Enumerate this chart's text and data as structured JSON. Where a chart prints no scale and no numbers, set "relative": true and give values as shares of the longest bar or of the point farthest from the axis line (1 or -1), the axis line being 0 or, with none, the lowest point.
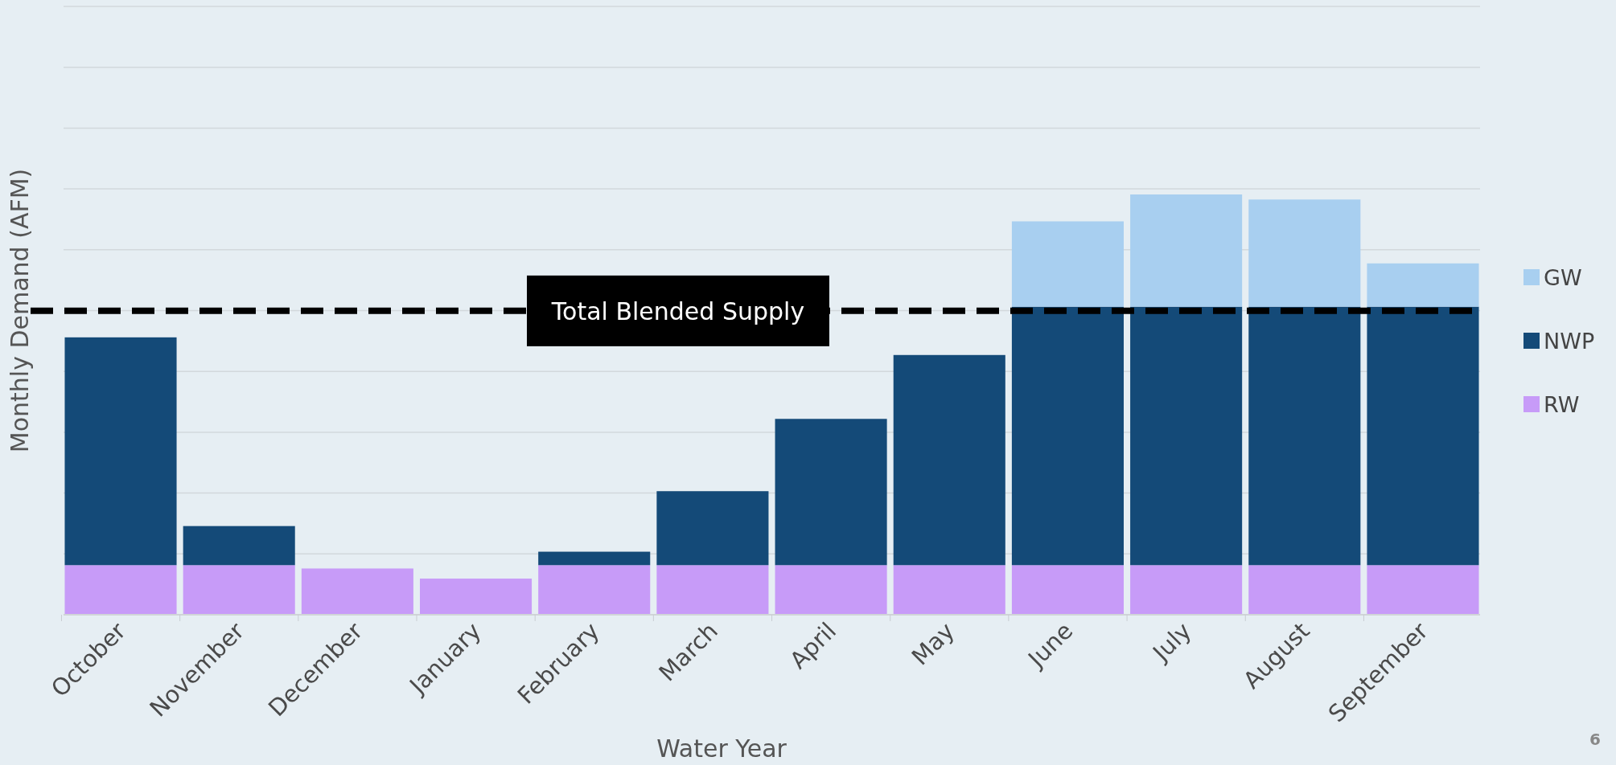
{
  "chart_data": {
    "type": "bar",
    "stacked": true,
    "relative": true,
    "xlabel": "Water Year",
    "ylabel": "Monthly Demand (AFM)",
    "categories": [
      "October",
      "November",
      "December",
      "January",
      "February",
      "March",
      "April",
      "May",
      "June",
      "July",
      "August",
      "September"
    ],
    "series": [
      {
        "name": "RW",
        "color": "#c79bf8",
        "values": [
          0.118,
          0.118,
          0.11,
          0.086,
          0.118,
          0.118,
          0.118,
          0.118,
          0.118,
          0.118,
          0.118,
          0.118
        ]
      },
      {
        "name": "NWP",
        "color": "#144a78",
        "values": [
          0.542,
          0.093,
          0,
          0,
          0.032,
          0.176,
          0.348,
          0.5,
          0.615,
          0.615,
          0.615,
          0.615
        ]
      },
      {
        "name": "GW",
        "color": "#a8cff0",
        "values": [
          0,
          0,
          0,
          0,
          0,
          0,
          0,
          0,
          0.203,
          0.267,
          0.255,
          0.103
        ]
      }
    ],
    "ref_lines": [
      {
        "axis": "y",
        "value": 0.723,
        "label": "Total Blended Supply",
        "color": "#000000",
        "line_style": "dashed"
      }
    ],
    "grid": "y",
    "legend": "right",
    "annotations": [
      "6"
    ]
  }
}
